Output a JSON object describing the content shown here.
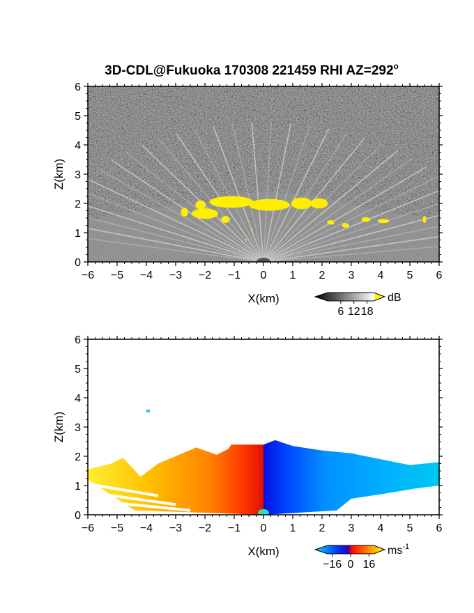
{
  "title": "3D-CDL@Fukuoka 170308 221459 RHI AZ=292",
  "title_degree_symbol": "o",
  "chart_data": [
    {
      "type": "heatmap",
      "panel": "top",
      "variable": "intensity",
      "xlabel": "X(km)",
      "ylabel": "Z(km)",
      "xlim": [
        -6,
        6
      ],
      "ylim": [
        0,
        6
      ],
      "xticks": [
        "-6",
        "-5",
        "-4",
        "-3",
        "-2",
        "-1",
        "0",
        "1",
        "2",
        "3",
        "4",
        "5",
        "6"
      ],
      "yticks": [
        "0",
        "1",
        "2",
        "3",
        "4",
        "5",
        "6"
      ],
      "grid": false,
      "colorbar": {
        "unit": "dB",
        "range": [
          0,
          21
        ],
        "ticks": [
          "6",
          "12",
          "18"
        ],
        "colors": [
          "#000000",
          "#ffffff",
          "#ffee00"
        ]
      },
      "features": {
        "cloud_base_km": [
          {
            "x": -6,
            "z": 1.4
          },
          {
            "x": -5,
            "z": 1.6
          },
          {
            "x": -4.2,
            "z": 1.8
          },
          {
            "x": -3.2,
            "z": 1.9
          },
          {
            "x": -2.4,
            "z": 2.1
          },
          {
            "x": -1.6,
            "z": 1.9
          },
          {
            "x": -1.1,
            "z": 2.3
          },
          {
            "x": 0,
            "z": 2.4
          },
          {
            "x": 1,
            "z": 2.35
          },
          {
            "x": 2,
            "z": 2.2
          },
          {
            "x": 3,
            "z": 2.0
          },
          {
            "x": 4,
            "z": 1.7
          },
          {
            "x": 5,
            "z": 1.6
          },
          {
            "x": 6,
            "z": 1.5
          }
        ],
        "saturated_color": "#ffee00"
      }
    },
    {
      "type": "heatmap",
      "panel": "bottom",
      "variable": "doppler velocity",
      "xlabel": "X(km)",
      "ylabel": "Z(km)",
      "xlim": [
        -6,
        6
      ],
      "ylim": [
        0,
        6
      ],
      "xticks": [
        "-6",
        "-5",
        "-4",
        "-3",
        "-2",
        "-1",
        "0",
        "1",
        "2",
        "3",
        "4",
        "5",
        "6"
      ],
      "yticks": [
        "0",
        "1",
        "2",
        "3",
        "4",
        "5",
        "6"
      ],
      "grid": false,
      "colorbar": {
        "unit": "ms",
        "unit_exponent": "-1",
        "range": [
          -20,
          20
        ],
        "ticks": [
          "-16",
          "0",
          "16"
        ],
        "colors": [
          "#00e0ff",
          "#0040ff",
          "#2000c0",
          "#ff0000",
          "#ff8000",
          "#ffff00"
        ]
      },
      "features": {
        "negative_side": "x>0",
        "positive_side": "x<0",
        "echo_top_km": 2.4
      }
    }
  ]
}
